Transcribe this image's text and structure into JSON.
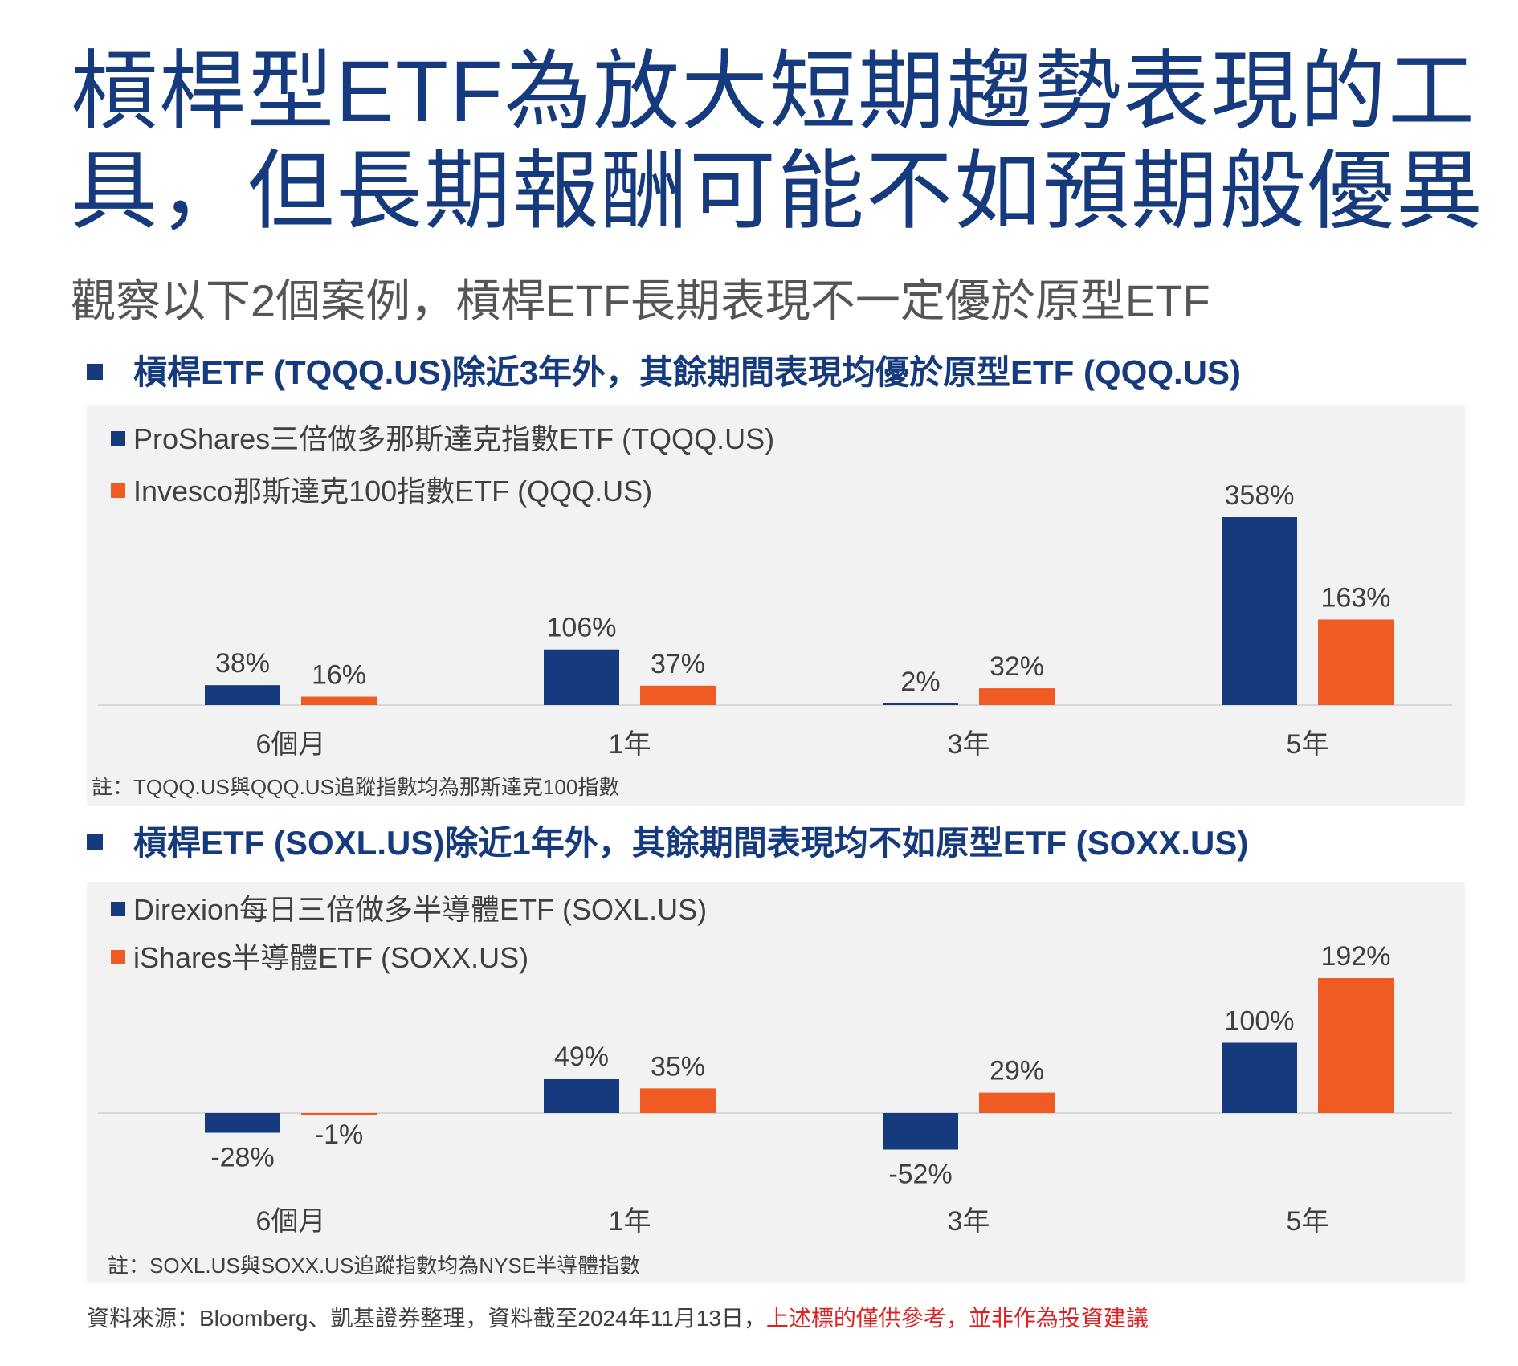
{
  "title": "槓桿型ETF為放大短期趨勢表現的工具，但長期報酬可能不如預期般優異",
  "subtitle": "觀察以下2個案例，槓桿ETF長期表現不一定優於原型ETF",
  "colors": {
    "navy": "#163a7e",
    "orange": "#f05a23",
    "panel": "#f2f2f2"
  },
  "sections": [
    {
      "heading": "槓桿ETF (TQQQ.US)除近3年外，其餘期間表現均優於原型ETF (QQQ.US)",
      "note": "註：TQQQ.US與QQQ.US追蹤指數均為那斯達克100指數"
    },
    {
      "heading": "槓桿ETF (SOXL.US)除近1年外，其餘期間表現均不如原型ETF (SOXX.US)",
      "note": "註：SOXL.US與SOXX.US追蹤指數均為NYSE半導體指數"
    }
  ],
  "chart_data": [
    {
      "type": "bar",
      "categories": [
        "6個月",
        "1年",
        "3年",
        "5年"
      ],
      "series": [
        {
          "name": "ProShares三倍做多那斯達克指數ETF (TQQQ.US)",
          "values": [
            38,
            106,
            2,
            358
          ],
          "labels": [
            "38%",
            "106%",
            "2%",
            "358%"
          ],
          "color": "#163a7e"
        },
        {
          "name": "Invesco那斯達克100指數ETF (QQQ.US)",
          "values": [
            16,
            37,
            32,
            163
          ],
          "labels": [
            "16%",
            "37%",
            "32%",
            "163%"
          ],
          "color": "#f05a23"
        }
      ],
      "ylim": [
        0,
        358
      ],
      "legend": "top-left"
    },
    {
      "type": "bar",
      "categories": [
        "6個月",
        "1年",
        "3年",
        "5年"
      ],
      "series": [
        {
          "name": "Direxion每日三倍做多半導體ETF (SOXL.US)",
          "values": [
            -28,
            49,
            -52,
            100
          ],
          "labels": [
            "-28%",
            "49%",
            "-52%",
            "100%"
          ],
          "color": "#163a7e"
        },
        {
          "name": "iShares半導體ETF (SOXX.US)",
          "values": [
            -1,
            35,
            29,
            192
          ],
          "labels": [
            "-1%",
            "35%",
            "29%",
            "192%"
          ],
          "color": "#f05a23"
        }
      ],
      "ylim": [
        -52,
        192
      ],
      "legend": "top-left"
    }
  ],
  "source": {
    "text": "資料來源：Bloomberg、凱基證券整理，資料截至2024年11月13日，",
    "disclaimer": "上述標的僅供參考，並非作為投資建議"
  }
}
